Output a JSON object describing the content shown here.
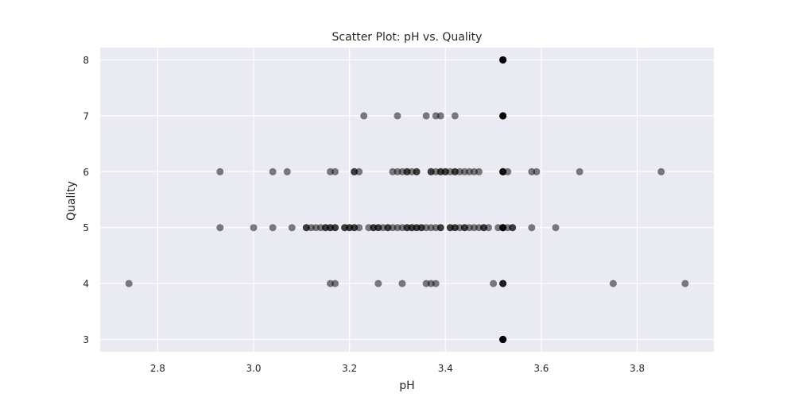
{
  "chart_data": {
    "type": "scatter",
    "title": "Scatter Plot: pH vs. Quality",
    "xlabel": "pH",
    "ylabel": "Quality",
    "xlim": [
      2.68,
      3.96
    ],
    "ylim": [
      2.78,
      8.22
    ],
    "xticks": [
      "2.8",
      "3.0",
      "3.2",
      "3.4",
      "3.6",
      "3.8"
    ],
    "yticks": [
      "3",
      "4",
      "5",
      "6",
      "7",
      "8"
    ],
    "grid": true,
    "colors": {
      "background": "#eaeaf2",
      "grid": "#ffffff",
      "point": "#000000",
      "text": "#262626"
    },
    "point_alpha": 0.5,
    "points": [
      [
        2.74,
        4
      ],
      [
        3.16,
        4
      ],
      [
        3.17,
        4
      ],
      [
        3.26,
        4
      ],
      [
        3.31,
        4
      ],
      [
        3.36,
        4
      ],
      [
        3.37,
        4
      ],
      [
        3.38,
        4
      ],
      [
        3.5,
        4
      ],
      [
        3.52,
        4
      ],
      [
        3.52,
        4
      ],
      [
        3.52,
        4
      ],
      [
        3.75,
        4
      ],
      [
        3.9,
        4
      ],
      [
        2.93,
        5
      ],
      [
        3.0,
        5
      ],
      [
        3.04,
        5
      ],
      [
        3.08,
        5
      ],
      [
        3.11,
        5
      ],
      [
        3.11,
        5
      ],
      [
        3.12,
        5
      ],
      [
        3.13,
        5
      ],
      [
        3.14,
        5
      ],
      [
        3.15,
        5
      ],
      [
        3.15,
        5
      ],
      [
        3.16,
        5
      ],
      [
        3.16,
        5
      ],
      [
        3.17,
        5
      ],
      [
        3.17,
        5
      ],
      [
        3.19,
        5
      ],
      [
        3.19,
        5
      ],
      [
        3.2,
        5
      ],
      [
        3.2,
        5
      ],
      [
        3.21,
        5
      ],
      [
        3.21,
        5
      ],
      [
        3.22,
        5
      ],
      [
        3.24,
        5
      ],
      [
        3.25,
        5
      ],
      [
        3.25,
        5
      ],
      [
        3.26,
        5
      ],
      [
        3.26,
        5
      ],
      [
        3.27,
        5
      ],
      [
        3.28,
        5
      ],
      [
        3.28,
        5
      ],
      [
        3.29,
        5
      ],
      [
        3.3,
        5
      ],
      [
        3.31,
        5
      ],
      [
        3.32,
        5
      ],
      [
        3.32,
        5
      ],
      [
        3.33,
        5
      ],
      [
        3.33,
        5
      ],
      [
        3.34,
        5
      ],
      [
        3.34,
        5
      ],
      [
        3.35,
        5
      ],
      [
        3.35,
        5
      ],
      [
        3.36,
        5
      ],
      [
        3.37,
        5
      ],
      [
        3.38,
        5
      ],
      [
        3.39,
        5
      ],
      [
        3.39,
        5
      ],
      [
        3.41,
        5
      ],
      [
        3.41,
        5
      ],
      [
        3.42,
        5
      ],
      [
        3.42,
        5
      ],
      [
        3.43,
        5
      ],
      [
        3.44,
        5
      ],
      [
        3.44,
        5
      ],
      [
        3.45,
        5
      ],
      [
        3.46,
        5
      ],
      [
        3.47,
        5
      ],
      [
        3.48,
        5
      ],
      [
        3.48,
        5
      ],
      [
        3.49,
        5
      ],
      [
        3.51,
        5
      ],
      [
        3.52,
        5
      ],
      [
        3.52,
        5
      ],
      [
        3.52,
        5
      ],
      [
        3.52,
        5
      ],
      [
        3.52,
        5
      ],
      [
        3.53,
        5
      ],
      [
        3.54,
        5
      ],
      [
        3.54,
        5
      ],
      [
        3.58,
        5
      ],
      [
        3.63,
        5
      ],
      [
        2.93,
        6
      ],
      [
        3.04,
        6
      ],
      [
        3.07,
        6
      ],
      [
        3.16,
        6
      ],
      [
        3.17,
        6
      ],
      [
        3.21,
        6
      ],
      [
        3.21,
        6
      ],
      [
        3.22,
        6
      ],
      [
        3.29,
        6
      ],
      [
        3.3,
        6
      ],
      [
        3.31,
        6
      ],
      [
        3.32,
        6
      ],
      [
        3.32,
        6
      ],
      [
        3.33,
        6
      ],
      [
        3.34,
        6
      ],
      [
        3.34,
        6
      ],
      [
        3.37,
        6
      ],
      [
        3.37,
        6
      ],
      [
        3.38,
        6
      ],
      [
        3.39,
        6
      ],
      [
        3.39,
        6
      ],
      [
        3.4,
        6
      ],
      [
        3.4,
        6
      ],
      [
        3.41,
        6
      ],
      [
        3.42,
        6
      ],
      [
        3.42,
        6
      ],
      [
        3.43,
        6
      ],
      [
        3.44,
        6
      ],
      [
        3.45,
        6
      ],
      [
        3.46,
        6
      ],
      [
        3.47,
        6
      ],
      [
        3.52,
        6
      ],
      [
        3.52,
        6
      ],
      [
        3.52,
        6
      ],
      [
        3.52,
        6
      ],
      [
        3.53,
        6
      ],
      [
        3.58,
        6
      ],
      [
        3.59,
        6
      ],
      [
        3.68,
        6
      ],
      [
        3.85,
        6
      ],
      [
        3.23,
        7
      ],
      [
        3.3,
        7
      ],
      [
        3.36,
        7
      ],
      [
        3.38,
        7
      ],
      [
        3.39,
        7
      ],
      [
        3.42,
        7
      ],
      [
        3.52,
        7
      ],
      [
        3.52,
        7
      ],
      [
        3.52,
        7
      ],
      [
        3.52,
        7
      ],
      [
        3.52,
        7
      ],
      [
        3.52,
        8
      ],
      [
        3.52,
        8
      ],
      [
        3.52,
        8
      ],
      [
        3.52,
        8
      ],
      [
        3.52,
        8
      ],
      [
        3.52,
        8
      ],
      [
        3.52,
        3
      ],
      [
        3.52,
        3
      ],
      [
        3.52,
        3
      ],
      [
        3.52,
        3
      ],
      [
        3.52,
        3
      ],
      [
        3.52,
        3
      ]
    ]
  }
}
